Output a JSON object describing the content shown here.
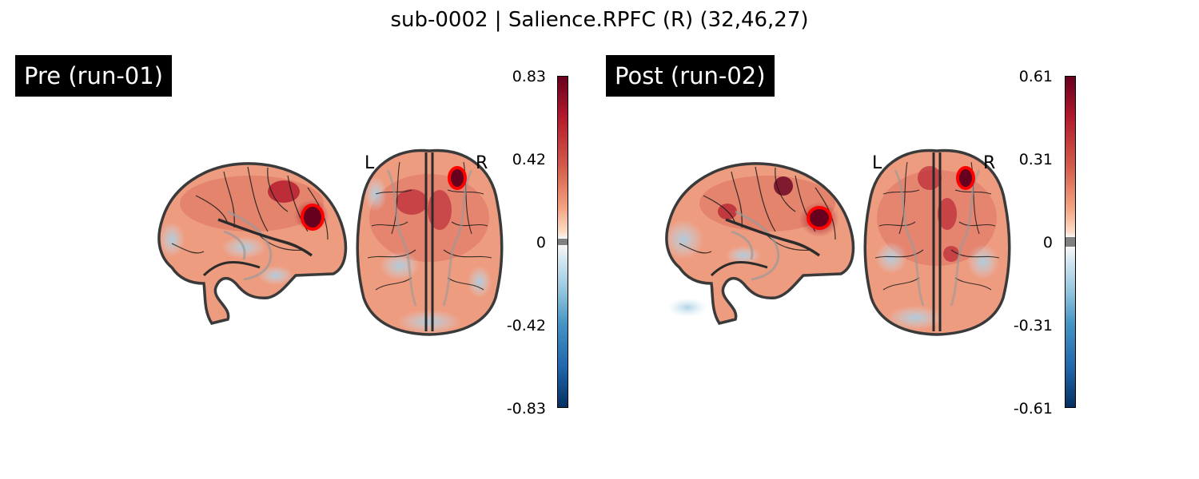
{
  "title": "sub-0002 | Salience.RPFC (R) (32,46,27)",
  "panels": [
    {
      "label": "Pre (run-01)",
      "colorbar": {
        "max": "0.83",
        "upper": "0.42",
        "zero": "0",
        "lower": "-0.42",
        "min": "-0.83"
      },
      "orientation": {
        "left": "L",
        "right": "R"
      }
    },
    {
      "label": "Post (run-02)",
      "colorbar": {
        "max": "0.61",
        "upper": "0.31",
        "zero": "0",
        "lower": "-0.31",
        "min": "-0.61"
      },
      "orientation": {
        "left": "L",
        "right": "R"
      }
    }
  ],
  "colors": {
    "positive_max": "#67001f",
    "positive_mid": "#d6604d",
    "neutral": "#f7f7f7",
    "negative_mid": "#4393c3",
    "negative_max": "#053061",
    "roi_marker": "#ff0000",
    "zero_band": "#808080"
  }
}
